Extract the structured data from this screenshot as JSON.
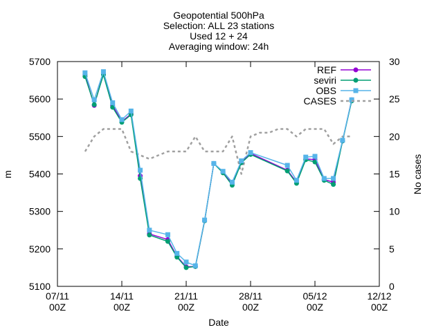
{
  "chart_data": {
    "type": "line",
    "title_lines": [
      "Geopotential 500hPa",
      "Selection: ALL      23 stations",
      "Used 12 + 24",
      "Averaging window: 24h"
    ],
    "xlabel": "Date",
    "ylabel": "m",
    "y2label": "No cases",
    "x_domain": [
      "2021-11-07T00:00",
      "2021-12-12T00:00"
    ],
    "xlim": [
      "2021-11-07T00:00",
      "2021-12-12T00:00"
    ],
    "x_ticks": [
      {
        "x": "2021-11-07T00:00",
        "label": [
          "07/11",
          "00Z"
        ]
      },
      {
        "x": "2021-11-14T00:00",
        "label": [
          "14/11",
          "00Z"
        ]
      },
      {
        "x": "2021-11-21T00:00",
        "label": [
          "21/11",
          "00Z"
        ]
      },
      {
        "x": "2021-11-28T00:00",
        "label": [
          "28/11",
          "00Z"
        ]
      },
      {
        "x": "2021-12-05T00:00",
        "label": [
          "05/12",
          "00Z"
        ]
      },
      {
        "x": "2021-12-12T00:00",
        "label": [
          "12/12",
          "00Z"
        ]
      }
    ],
    "ylim": [
      5100,
      5700
    ],
    "y_ticks": [
      5100,
      5200,
      5300,
      5400,
      5500,
      5600,
      5700
    ],
    "y2lim": [
      0,
      30
    ],
    "y2_ticks": [
      0,
      5,
      10,
      15,
      20,
      25,
      30
    ],
    "grid": false,
    "legend_position": "top-right",
    "series": [
      {
        "name": "REF",
        "color": "#9400d3",
        "marker": "circle",
        "axis": "y",
        "x": [
          "2021-11-10T00:00",
          "2021-11-11T00:00",
          "2021-11-12T00:00",
          "2021-11-13T00:00",
          "2021-11-14T00:00",
          "2021-11-15T00:00",
          "2021-11-16T00:00",
          "2021-11-17T00:00",
          "2021-11-19T00:00",
          "2021-11-20T00:00",
          "2021-11-21T00:00",
          "2021-11-22T00:00",
          "2021-11-23T00:00",
          "2021-11-24T00:00",
          "2021-11-25T00:00",
          "2021-11-26T00:00",
          "2021-11-27T00:00",
          "2021-11-28T00:00",
          "2021-12-02T00:00",
          "2021-12-03T00:00",
          "2021-12-04T00:00",
          "2021-12-05T00:00",
          "2021-12-06T00:00",
          "2021-12-07T00:00",
          "2021-12-08T00:00",
          "2021-12-09T00:00"
        ],
        "values": [
          5665,
          5583,
          5668,
          5583,
          5540,
          5560,
          5395,
          5240,
          5225,
          5180,
          5152,
          5153,
          5275,
          5428,
          5405,
          5375,
          5430,
          5455,
          5410,
          5378,
          5440,
          5438,
          5385,
          5378,
          5488,
          5598
        ]
      },
      {
        "name": "seviri",
        "color": "#009e73",
        "marker": "circle",
        "axis": "y",
        "x": [
          "2021-11-10T00:00",
          "2021-11-11T00:00",
          "2021-11-12T00:00",
          "2021-11-13T00:00",
          "2021-11-14T00:00",
          "2021-11-15T00:00",
          "2021-11-16T00:00",
          "2021-11-17T00:00",
          "2021-11-19T00:00",
          "2021-11-20T00:00",
          "2021-11-21T00:00",
          "2021-11-22T00:00",
          "2021-11-23T00:00",
          "2021-11-24T00:00",
          "2021-11-25T00:00",
          "2021-11-26T00:00",
          "2021-11-27T00:00",
          "2021-11-28T00:00",
          "2021-12-02T00:00",
          "2021-12-03T00:00",
          "2021-12-04T00:00",
          "2021-12-05T00:00",
          "2021-12-06T00:00",
          "2021-12-07T00:00",
          "2021-12-08T00:00",
          "2021-12-09T00:00"
        ],
        "values": [
          5660,
          5585,
          5665,
          5578,
          5538,
          5558,
          5388,
          5237,
          5220,
          5178,
          5150,
          5153,
          5275,
          5428,
          5403,
          5370,
          5430,
          5452,
          5408,
          5375,
          5438,
          5432,
          5383,
          5372,
          5488,
          5595
        ]
      },
      {
        "name": "OBS",
        "color": "#56b4e9",
        "marker": "square",
        "axis": "y",
        "x": [
          "2021-11-10T00:00",
          "2021-11-11T00:00",
          "2021-11-12T00:00",
          "2021-11-13T00:00",
          "2021-11-14T00:00",
          "2021-11-15T00:00",
          "2021-11-16T00:00",
          "2021-11-17T00:00",
          "2021-11-19T00:00",
          "2021-11-20T00:00",
          "2021-11-21T00:00",
          "2021-11-22T00:00",
          "2021-11-23T00:00",
          "2021-11-24T00:00",
          "2021-11-25T00:00",
          "2021-11-26T00:00",
          "2021-11-27T00:00",
          "2021-11-28T00:00",
          "2021-12-02T00:00",
          "2021-12-03T00:00",
          "2021-12-04T00:00",
          "2021-12-05T00:00",
          "2021-12-06T00:00",
          "2021-12-07T00:00",
          "2021-12-08T00:00",
          "2021-12-09T00:00"
        ],
        "values": [
          5670,
          5598,
          5673,
          5590,
          5545,
          5568,
          5410,
          5250,
          5238,
          5188,
          5165,
          5155,
          5277,
          5428,
          5407,
          5378,
          5435,
          5457,
          5423,
          5383,
          5445,
          5447,
          5388,
          5388,
          5490,
          5598
        ]
      },
      {
        "name": "CASES",
        "color": "#a0a0a0",
        "marker": "none",
        "dashed": true,
        "axis": "y2",
        "x": [
          "2021-11-10T00:00",
          "2021-11-11T00:00",
          "2021-11-12T00:00",
          "2021-11-13T00:00",
          "2021-11-14T00:00",
          "2021-11-15T00:00",
          "2021-11-16T00:00",
          "2021-11-17T00:00",
          "2021-11-18T00:00",
          "2021-11-19T00:00",
          "2021-11-20T00:00",
          "2021-11-21T00:00",
          "2021-11-22T00:00",
          "2021-11-23T00:00",
          "2021-11-24T00:00",
          "2021-11-25T00:00",
          "2021-11-26T00:00",
          "2021-11-27T00:00",
          "2021-11-28T00:00",
          "2021-11-29T00:00",
          "2021-11-30T00:00",
          "2021-12-01T00:00",
          "2021-12-02T00:00",
          "2021-12-03T00:00",
          "2021-12-04T00:00",
          "2021-12-05T00:00",
          "2021-12-06T00:00",
          "2021-12-07T00:00",
          "2021-12-08T00:00",
          "2021-12-09T00:00"
        ],
        "values": [
          18,
          20,
          21,
          21,
          21,
          18,
          17.5,
          17,
          17.5,
          18,
          18,
          18,
          20,
          18,
          18,
          18,
          20,
          15,
          20,
          20.5,
          20.5,
          21,
          21,
          20,
          21,
          21,
          21,
          19,
          20,
          20
        ]
      }
    ]
  }
}
